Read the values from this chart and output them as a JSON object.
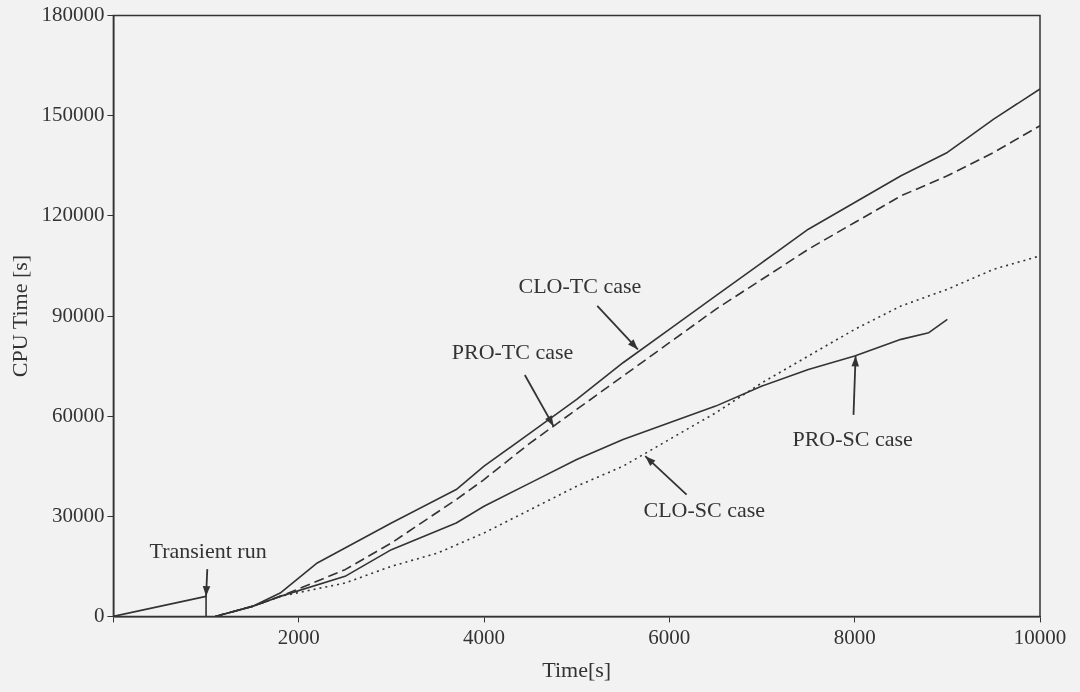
{
  "chart_data": {
    "type": "line",
    "xlabel": "Time[s]",
    "ylabel": "CPU Time [s]",
    "xlim": [
      0,
      10000
    ],
    "ylim": [
      0,
      180000
    ],
    "xticks": [
      {
        "value": 0,
        "label": null
      },
      2000,
      4000,
      6000,
      8000,
      10000
    ],
    "yticks": [
      0,
      30000,
      60000,
      90000,
      120000,
      150000,
      180000
    ],
    "grid": false,
    "legend": false,
    "marker": "none",
    "series": [
      {
        "color": "#333333",
        "line_style": "solid",
        "x": [
          0,
          1000,
          1000
        ],
        "values": [
          0,
          6000,
          0
        ]
      },
      {
        "color": "#333333",
        "line_style": "solid",
        "x": [
          1100,
          1500,
          1800,
          2200,
          3000,
          3700,
          4000,
          4500,
          5000,
          5500,
          6000,
          6500,
          7000,
          7500,
          8000,
          8500,
          9000,
          9200,
          9500,
          10000
        ],
        "values": [
          0,
          3000,
          7000,
          16000,
          28000,
          38000,
          45000,
          55000,
          65000,
          76000,
          86000,
          96000,
          106000,
          116000,
          124000,
          132000,
          139000,
          143000,
          149000,
          158000
        ]
      },
      {
        "color": "#333333",
        "line_style": "dashed",
        "x": [
          1100,
          1500,
          1800,
          2500,
          3000,
          3700,
          4000,
          4500,
          5000,
          5500,
          6000,
          6500,
          7000,
          7500,
          8000,
          8500,
          9000,
          9500,
          10000
        ],
        "values": [
          0,
          3000,
          6000,
          14000,
          22000,
          35000,
          41000,
          52000,
          62000,
          72000,
          82000,
          92000,
          101000,
          110000,
          118000,
          126000,
          132000,
          139000,
          147000
        ]
      },
      {
        "color": "#333333",
        "line_style": "solid",
        "x": [
          1100,
          1500,
          1800,
          2500,
          3000,
          3700,
          4000,
          4500,
          5000,
          5500,
          6000,
          6500,
          7000,
          7500,
          8000,
          8500,
          8800,
          9000
        ],
        "values": [
          0,
          3000,
          6000,
          12000,
          20000,
          28000,
          33000,
          40000,
          47000,
          53000,
          58000,
          63000,
          69000,
          74000,
          78000,
          83000,
          85000,
          89000
        ]
      },
      {
        "color": "#333333",
        "line_style": "dotted",
        "x": [
          1100,
          1500,
          1800,
          2500,
          3000,
          3500,
          4000,
          4500,
          5000,
          5500,
          6000,
          6500,
          7000,
          7500,
          8000,
          8500,
          9000,
          9500,
          10000
        ],
        "values": [
          0,
          3000,
          6000,
          10000,
          15000,
          19000,
          25000,
          32000,
          39000,
          45000,
          53000,
          61000,
          70000,
          78000,
          86000,
          93000,
          98000,
          104000,
          108000
        ]
      }
    ],
    "annotations": [
      {
        "text": "Transient run",
        "x": 1000,
        "y": 6000
      },
      {
        "text": "CLO-TC case",
        "x": 5660,
        "y": 80000
      },
      {
        "text": "PRO-TC case",
        "x": 4750,
        "y": 57000
      },
      {
        "text": "PRO-SC case",
        "x": 8010,
        "y": 78000
      },
      {
        "text": "CLO-SC case",
        "x": 5740,
        "y": 48000
      }
    ]
  }
}
